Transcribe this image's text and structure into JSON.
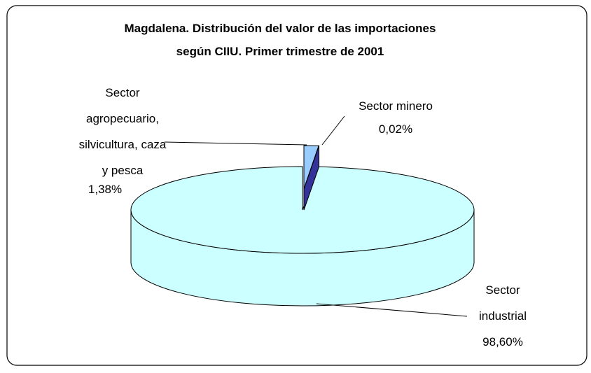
{
  "chart_data": {
    "type": "pie3d",
    "title": "Magdalena.  Distribución del valor de las importaciones",
    "subtitle": "según CIIU.  Primer trimestre de 2001",
    "categories": [
      "Sector agropecuario, silvicultura, caza y pesca",
      "Sector minero",
      "Sector industrial"
    ],
    "values": [
      1.38,
      0.02,
      98.6
    ],
    "value_labels": [
      "1,38%",
      "0,02%",
      "98,60%"
    ],
    "colors": [
      "#99ccff",
      "#333399",
      "#ccffff"
    ]
  }
}
